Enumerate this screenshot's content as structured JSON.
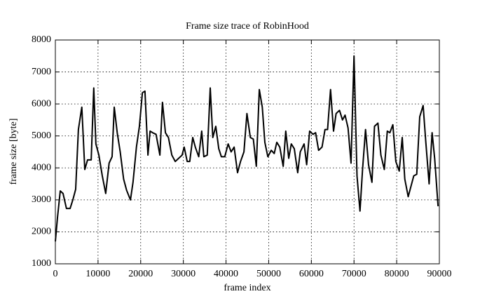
{
  "chart_data": {
    "type": "line",
    "title": "Frame size trace of RobinHood",
    "xlabel": "frame index",
    "ylabel": "frame size [byte]",
    "color": "#000000",
    "grid": true,
    "xlim": [
      0,
      90000
    ],
    "ylim": [
      1000,
      8000
    ],
    "xticks": [
      0,
      10000,
      20000,
      30000,
      40000,
      50000,
      60000,
      70000,
      80000,
      90000
    ],
    "yticks": [
      1000,
      2000,
      3000,
      4000,
      5000,
      6000,
      7000,
      8000
    ],
    "x": [
      0,
      500,
      1150,
      1800,
      2600,
      3450,
      4100,
      4760,
      5400,
      6200,
      6900,
      7550,
      8400,
      9000,
      9500,
      10200,
      11000,
      11800,
      12600,
      13300,
      13800,
      14500,
      15200,
      16000,
      16700,
      17600,
      18200,
      19000,
      19700,
      20400,
      21000,
      21700,
      22200,
      22800,
      23600,
      24500,
      25100,
      25800,
      26500,
      27300,
      28100,
      28900,
      29700,
      30200,
      30900,
      31500,
      32200,
      32800,
      33600,
      34300,
      34800,
      35600,
      36300,
      36900,
      37600,
      38300,
      38900,
      39700,
      40500,
      41200,
      41900,
      42700,
      43400,
      44200,
      44900,
      45700,
      46400,
      47100,
      47800,
      48500,
      49100,
      49800,
      50600,
      51300,
      51900,
      52600,
      53400,
      54000,
      54700,
      55300,
      56000,
      56800,
      57400,
      58300,
      58900,
      59600,
      60400,
      61000,
      61700,
      62500,
      63200,
      63800,
      64500,
      65200,
      65800,
      66600,
      67300,
      67900,
      68600,
      69300,
      70000,
      70700,
      71400,
      72000,
      72700,
      73400,
      74200,
      74800,
      75600,
      76300,
      77100,
      77800,
      78400,
      79100,
      79800,
      80600,
      81300,
      81900,
      82700,
      83400,
      84000,
      84700,
      85400,
      86200,
      86800,
      87600,
      88300,
      88900,
      89700
    ],
    "values": [
      1700,
      2450,
      3280,
      3200,
      2730,
      2730,
      3000,
      3330,
      5200,
      5900,
      3950,
      4250,
      4250,
      6500,
      4750,
      4400,
      3750,
      3200,
      4150,
      4350,
      5900,
      5100,
      4500,
      3650,
      3300,
      3000,
      3550,
      4650,
      5300,
      6350,
      6400,
      4400,
      5150,
      5100,
      5050,
      4400,
      6050,
      5100,
      4950,
      4400,
      4200,
      4300,
      4400,
      4650,
      4200,
      4200,
      4950,
      4650,
      4350,
      5150,
      4350,
      4400,
      6500,
      4950,
      5300,
      4600,
      4350,
      4350,
      4750,
      4500,
      4650,
      3850,
      4200,
      4500,
      5700,
      4950,
      4900,
      4050,
      6450,
      5900,
      4800,
      4350,
      4550,
      4450,
      4800,
      4650,
      4050,
      5150,
      4300,
      4750,
      4600,
      3850,
      4500,
      4750,
      4100,
      5150,
      5050,
      5100,
      4550,
      4650,
      5200,
      5200,
      6450,
      5150,
      5700,
      5800,
      5500,
      5650,
      5250,
      4150,
      7500,
      3750,
      2650,
      3950,
      5200,
      4100,
      3550,
      5300,
      5400,
      4400,
      3950,
      5150,
      5100,
      5350,
      4200,
      3900,
      4950,
      3650,
      3100,
      3450,
      3750,
      3800,
      5600,
      5950,
      4850,
      3500,
      5100,
      4300,
      2800
    ]
  }
}
